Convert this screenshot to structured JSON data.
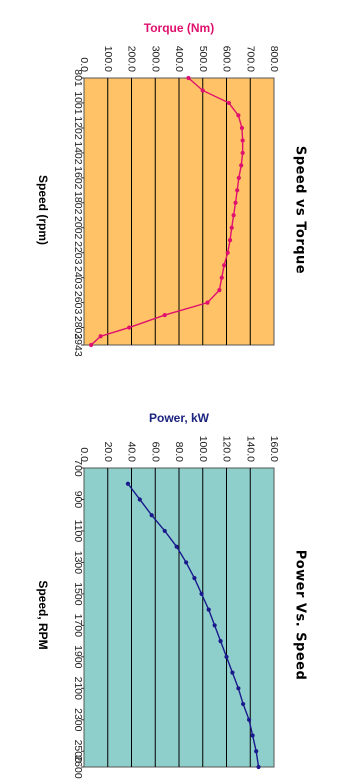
{
  "chart_data": [
    {
      "type": "line",
      "title": "Speed vs Torque",
      "xlabel": "Speed (rpm)",
      "ylabel": "Torque (Nm)",
      "ylim": [
        0,
        800
      ],
      "yticks": [
        "0.0",
        "100.0",
        "200.0",
        "300.0",
        "400.0",
        "500.0",
        "600.0",
        "700.0",
        "800.0"
      ],
      "categories": [
        "801",
        "1001",
        "1202",
        "1402",
        "1602",
        "1802",
        "2002",
        "2203",
        "2403",
        "2603",
        "2803",
        "2943"
      ],
      "series": [
        {
          "x": [
            801,
            901,
            1001,
            1101,
            1202,
            1302,
            1402,
            1502,
            1602,
            1702,
            1802,
            1902,
            2002,
            2102,
            2203,
            2303,
            2403,
            2503,
            2603,
            2703,
            2803,
            2873,
            2943
          ],
          "values": [
            440,
            500,
            610,
            650,
            665,
            668,
            668,
            662,
            652,
            645,
            638,
            630,
            622,
            615,
            605,
            590,
            580,
            570,
            520,
            340,
            190,
            70,
            30
          ]
        }
      ],
      "colors": {
        "line": "#e0116e",
        "plot_bg": "#ffc266",
        "axis_title": "#e0116e"
      },
      "grid": true
    },
    {
      "type": "line",
      "title": "Power Vs. Speed",
      "xlabel": "Speed, RPM",
      "ylabel": "Power, kW",
      "ylim": [
        0,
        160
      ],
      "yticks": [
        "0.0",
        "20.0",
        "40.0",
        "60.0",
        "80.0",
        "100.0",
        "120.0",
        "140.0",
        "160.0"
      ],
      "categories": [
        "700",
        "900",
        "1100",
        "1300",
        "1500",
        "1700",
        "1900",
        "2100",
        "2300",
        "2500",
        "2600"
      ],
      "series": [
        {
          "x": [
            800,
            900,
            1000,
            1100,
            1200,
            1300,
            1400,
            1500,
            1600,
            1700,
            1800,
            1900,
            2000,
            2100,
            2200,
            2300,
            2400,
            2500,
            2600
          ],
          "values": [
            37,
            47,
            57,
            68,
            78,
            86,
            93,
            99,
            105,
            110,
            115,
            120,
            125,
            130,
            134,
            139,
            142,
            145,
            147
          ]
        }
      ],
      "colors": {
        "line": "#1a1a8c",
        "plot_bg": "#8ecfcc",
        "axis_title": "#1a237e"
      },
      "grid": true
    }
  ]
}
